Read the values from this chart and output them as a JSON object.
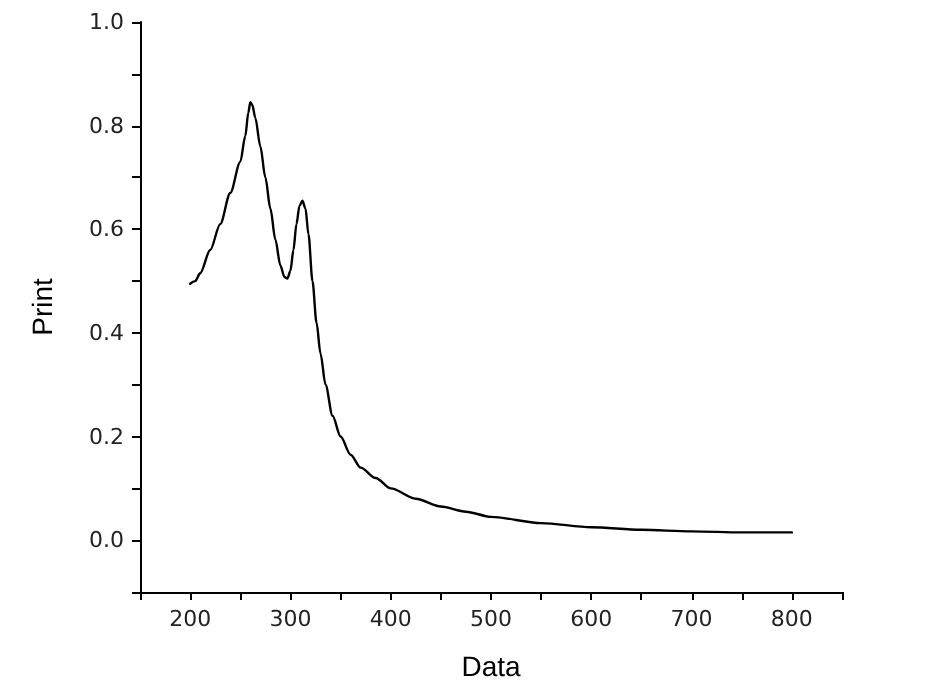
{
  "chart_data": {
    "type": "line",
    "xlabel": "Data",
    "ylabel": "Print",
    "xlim": [
      150,
      850
    ],
    "ylim": [
      -0.1,
      1.0
    ],
    "xticks": [
      {
        "value": 150,
        "label": null
      },
      200,
      {
        "value": 250,
        "label": null
      },
      300,
      {
        "value": 350,
        "label": null
      },
      400,
      {
        "value": 450,
        "label": null
      },
      500,
      {
        "value": 550,
        "label": null
      },
      600,
      {
        "value": 650,
        "label": null
      },
      700,
      {
        "value": 750,
        "label": null
      },
      800,
      {
        "value": 850,
        "label": null
      }
    ],
    "yticks": [
      {
        "value": -0.1,
        "label": null
      },
      {
        "value": 0,
        "label": "0.0"
      },
      {
        "value": 0.1,
        "label": null
      },
      {
        "value": 0.2,
        "label": "0.2"
      },
      {
        "value": 0.3,
        "label": null
      },
      {
        "value": 0.4,
        "label": "0.4"
      },
      {
        "value": 0.5,
        "label": null
      },
      {
        "value": 0.6,
        "label": "0.6"
      },
      {
        "value": 0.7,
        "label": null
      },
      {
        "value": 0.8,
        "label": "0.8"
      },
      {
        "value": 0.9,
        "label": null
      },
      {
        "value": 1.0,
        "label": "1.0"
      }
    ],
    "grid": false,
    "marker": "none",
    "line_style": "solid",
    "series": [
      {
        "color": "#000000",
        "x": [
          200,
          205,
          210,
          220,
          230,
          240,
          250,
          255,
          258,
          260,
          262,
          265,
          270,
          275,
          280,
          285,
          290,
          294,
          297,
          300,
          303,
          306,
          309,
          312,
          315,
          318,
          322,
          326,
          330,
          335,
          342,
          350,
          360,
          370,
          385,
          400,
          425,
          450,
          475,
          500,
          550,
          600,
          650,
          700,
          750,
          800
        ],
        "values": [
          0.495,
          0.5,
          0.515,
          0.56,
          0.61,
          0.67,
          0.73,
          0.78,
          0.825,
          0.845,
          0.84,
          0.815,
          0.76,
          0.7,
          0.64,
          0.58,
          0.53,
          0.508,
          0.505,
          0.52,
          0.56,
          0.61,
          0.645,
          0.655,
          0.64,
          0.59,
          0.5,
          0.42,
          0.36,
          0.3,
          0.24,
          0.2,
          0.165,
          0.14,
          0.12,
          0.1,
          0.08,
          0.065,
          0.055,
          0.045,
          0.033,
          0.025,
          0.02,
          0.017,
          0.015,
          0.015
        ]
      }
    ]
  }
}
